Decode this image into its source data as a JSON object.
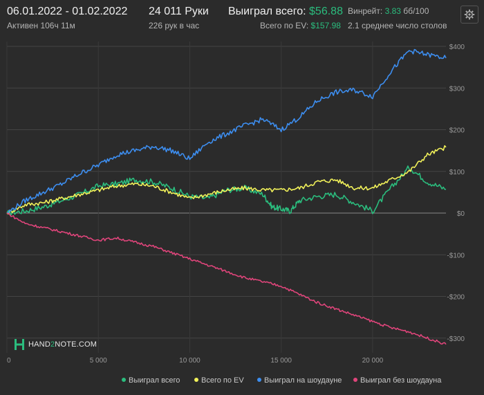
{
  "header": {
    "date_range": "06.01.2022 - 01.02.2022",
    "active": "Активен 106ч 11м",
    "hands": "24 011 Руки",
    "hands_per_hour": "226 рук в час",
    "won_label": "Выиграл всего:",
    "won_value": "$56.88",
    "ev_label": "Всего по EV:",
    "ev_value": "$157.98",
    "winrate_label": "Винрейт:",
    "winrate_value": "3.83",
    "winrate_unit": "бб/100",
    "avg_tables": "2.1 среднее число столов"
  },
  "settings_icon": "gear-icon",
  "logo": {
    "text_part1": "HAND",
    "text_part2": "2",
    "text_part3": "NOTE.COM",
    "icon": "hand2note-logo-icon"
  },
  "colors": {
    "won": "#2bbd7e",
    "ev": "#f2f25a",
    "showdown": "#3d8ef0",
    "non_showdown": "#e0457b",
    "grid": "#444444",
    "zero": "#8a8a8a"
  },
  "chart_data": {
    "type": "line",
    "xlim": [
      0,
      24011
    ],
    "ylim": [
      -320,
      410
    ],
    "x_ticks": [
      0,
      5000,
      10000,
      15000,
      20000
    ],
    "x_tick_labels": [
      "0",
      "5 000",
      "10 000",
      "15 000",
      "20 000"
    ],
    "y_ticks": [
      400,
      300,
      200,
      100,
      0,
      -100,
      -200,
      -300
    ],
    "y_tick_labels": [
      "$400",
      "$300",
      "$200",
      "$100",
      "$0",
      "-$100",
      "-$200",
      "-$300"
    ],
    "legend_position": "bottom-right",
    "series": [
      {
        "name": "Выиграл всего",
        "color": "#2bbd7e",
        "x": [
          0,
          1000,
          2000,
          3000,
          4000,
          5000,
          6000,
          7000,
          8000,
          9000,
          10000,
          11000,
          12000,
          13000,
          14000,
          14500,
          15000,
          15500,
          16000,
          17000,
          18000,
          19000,
          20000,
          21000,
          22000,
          23000,
          24011
        ],
        "y": [
          0,
          5,
          15,
          30,
          45,
          65,
          70,
          80,
          75,
          60,
          40,
          35,
          55,
          60,
          45,
          15,
          10,
          5,
          30,
          40,
          45,
          25,
          5,
          60,
          110,
          75,
          57
        ]
      },
      {
        "name": "Всего по EV",
        "color": "#f2f25a",
        "x": [
          0,
          1000,
          2000,
          3000,
          4000,
          5000,
          6000,
          7000,
          8000,
          9000,
          10000,
          11000,
          12000,
          13000,
          14000,
          15000,
          16000,
          17000,
          18000,
          19000,
          20000,
          21000,
          22000,
          23000,
          24011
        ],
        "y": [
          0,
          20,
          25,
          35,
          45,
          55,
          65,
          70,
          65,
          50,
          35,
          45,
          55,
          60,
          55,
          55,
          60,
          75,
          80,
          60,
          60,
          80,
          100,
          140,
          158
        ]
      },
      {
        "name": "Выиграл на шоудауне",
        "color": "#3d8ef0",
        "x": [
          0,
          1000,
          2000,
          3000,
          4000,
          5000,
          6000,
          7000,
          8000,
          9000,
          10000,
          11000,
          12000,
          13000,
          14000,
          15000,
          16000,
          17000,
          18000,
          19000,
          20000,
          21000,
          22000,
          23000,
          24011
        ],
        "y": [
          0,
          30,
          50,
          70,
          95,
          115,
          140,
          150,
          160,
          150,
          130,
          170,
          190,
          210,
          225,
          200,
          230,
          270,
          290,
          295,
          280,
          340,
          390,
          380,
          372
        ]
      },
      {
        "name": "Выиграл без шоудауна",
        "color": "#e0457b",
        "x": [
          0,
          1000,
          2000,
          3000,
          4000,
          5000,
          6000,
          7000,
          8000,
          9000,
          10000,
          11000,
          12000,
          13000,
          14000,
          15000,
          16000,
          17000,
          18000,
          19000,
          20000,
          21000,
          22000,
          23000,
          24011
        ],
        "y": [
          0,
          -25,
          -35,
          -45,
          -55,
          -65,
          -60,
          -70,
          -80,
          -95,
          -110,
          -125,
          -140,
          -155,
          -165,
          -175,
          -195,
          -215,
          -230,
          -245,
          -260,
          -275,
          -285,
          -300,
          -315
        ]
      }
    ]
  }
}
